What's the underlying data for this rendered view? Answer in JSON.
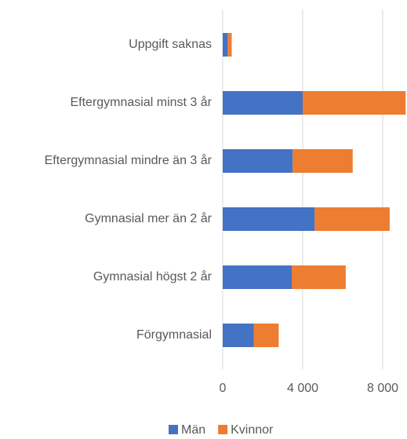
{
  "chart_data": {
    "type": "stacked_barh",
    "categories": [
      "Uppgift saknas",
      "Eftergymnasial minst 3 år",
      "Eftergymnasial mindre än 3 år",
      "Gymnasial mer än 2 år",
      "Gymnasial högst 2 år",
      "Förgymnasial"
    ],
    "series": [
      {
        "name": "Män",
        "color": "#4472c4",
        "values": [
          250,
          4000,
          3500,
          4600,
          3450,
          1550
        ]
      },
      {
        "name": "Kvinnor",
        "color": "#ed7d31",
        "values": [
          200,
          5150,
          3000,
          3750,
          2700,
          1250
        ]
      }
    ],
    "xlim": [
      0,
      9200
    ],
    "xticks": [
      0,
      {
        "value": 4000,
        "label": "4 000"
      },
      {
        "value": 8000,
        "label": "8 000"
      }
    ],
    "grid": true,
    "legend": "bottom"
  }
}
